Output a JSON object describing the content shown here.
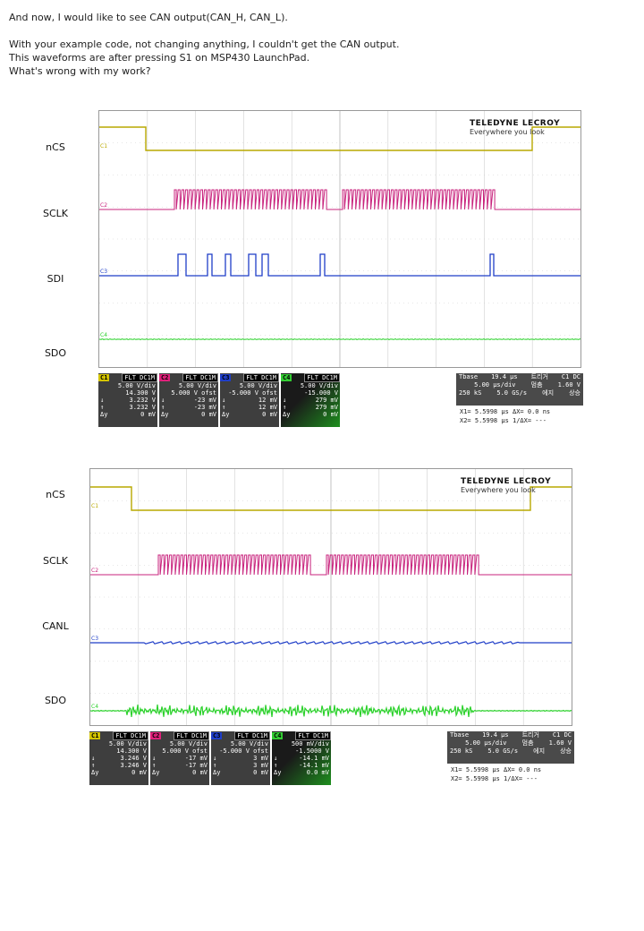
{
  "post": {
    "line1": "And now, I would like to see CAN output(CAN_H, CAN_L).",
    "line2": "With your example code, not changing anything, I couldn't get the CAN output.",
    "line3": "This waveforms are after pressing S1 on MSP430 LaunchPad.",
    "line4": "What's wrong with my work?"
  },
  "scope1": {
    "labels": [
      "nCS",
      "SCLK",
      "SDI",
      "SDO"
    ],
    "logo": {
      "brand": "TELEDYNE LECROY",
      "tagline": "Everywhere you look"
    },
    "channels": [
      {
        "tag": "C1",
        "flt": "FLT DC1M",
        "color": "#d4c400",
        "vdiv": "5.00 V/div",
        "ofst": "14.300 V",
        "a": "3.232 V",
        "b": "3.232 V",
        "dy": "0 mV"
      },
      {
        "tag": "C2",
        "flt": "FLT DC1M",
        "color": "#e0207a",
        "vdiv": "5.00 V/div",
        "ofst": "5.000 V ofst",
        "a": "-23 mV",
        "b": "-23 mV",
        "dy": "0 mV"
      },
      {
        "tag": "C3",
        "flt": "FLT DC1M",
        "color": "#1f3ec8",
        "vdiv": "5.00 V/div",
        "ofst": "-5.000 V ofst",
        "a": "12 mV",
        "b": "12 mV",
        "dy": "0 mV"
      },
      {
        "tag": "C4",
        "flt": "FLT DC1M",
        "color": "#33cc33",
        "vdiv": "5.00 V/div",
        "ofst": "-15.000 V",
        "a": "279 mV",
        "b": "279 mV",
        "dy": "0 mV"
      }
    ],
    "trigger": {
      "tbase": "Tbase",
      "tbase_val": "19.4 µs",
      "trig_kr": "트리거",
      "trig_ch": "C1 DC",
      "tdiv": "5.00 µs/div",
      "mode_kr": "멈춤",
      "level": "1.60 V",
      "samples": "250 kS",
      "rate": "5.0 GS/s",
      "type_kr": "에지",
      "slope_kr": "상승"
    },
    "cursor": {
      "x1": "X1= 5.5998 µs",
      "dx": "ΔX= 0.0 ns",
      "x2": "X2= 5.5998 µs",
      "inv": "1/ΔX=",
      "inv_val": "---"
    }
  },
  "scope2": {
    "labels": [
      "nCS",
      "SCLK",
      "CANL",
      "SDO"
    ],
    "logo": {
      "brand": "TELEDYNE LECROY",
      "tagline": "Everywhere you look"
    },
    "channels": [
      {
        "tag": "C1",
        "flt": "FLT DC1M",
        "color": "#d4c400",
        "vdiv": "5.00 V/div",
        "ofst": "14.300 V",
        "a": "3.246 V",
        "b": "3.246 V",
        "dy": "0 mV"
      },
      {
        "tag": "C2",
        "flt": "FLT DC1M",
        "color": "#e0207a",
        "vdiv": "5.00 V/div",
        "ofst": "5.000 V ofst",
        "a": "-17 mV",
        "b": "-17 mV",
        "dy": "0 mV"
      },
      {
        "tag": "C3",
        "flt": "FLT DC1M",
        "color": "#1f3ec8",
        "vdiv": "5.00 V/div",
        "ofst": "-5.000 V ofst",
        "a": "3 mV",
        "b": "3 mV",
        "dy": "0 mV"
      },
      {
        "tag": "C4",
        "flt": "FLT DC1M",
        "color": "#33cc33",
        "vdiv": "500 mV/div",
        "ofst": "-1.5000 V",
        "a": "-14.1 mV",
        "b": "-14.1 mV",
        "dy": "0.0 mV"
      }
    ],
    "trigger": {
      "tbase": "Tbase",
      "tbase_val": "19.4 µs",
      "trig_kr": "트리거",
      "trig_ch": "C1 DC",
      "tdiv": "5.00 µs/div",
      "mode_kr": "멈춤",
      "level": "1.60 V",
      "samples": "250 kS",
      "rate": "5.0 GS/s",
      "type_kr": "에지",
      "slope_kr": "상승"
    },
    "cursor": {
      "x1": "X1= 5.5998 µs",
      "dx": "ΔX= 0.0 ns",
      "x2": "X2= 5.5998 µs",
      "inv": "1/ΔX=",
      "inv_val": "---"
    }
  }
}
